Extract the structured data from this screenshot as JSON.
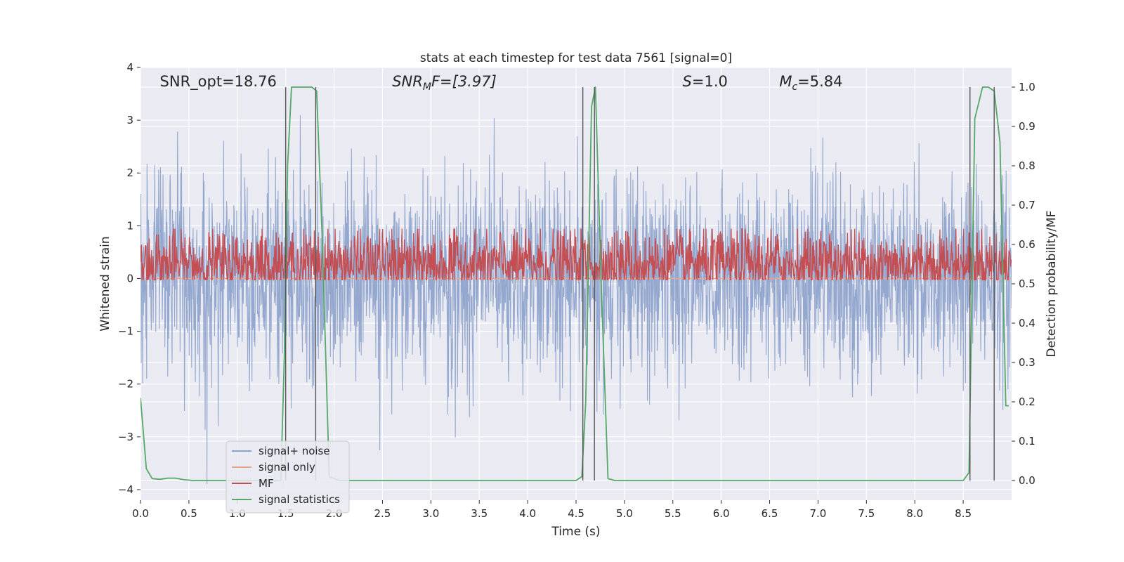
{
  "chart_data": {
    "type": "line",
    "title": "stats at each timestep for test data 7561 [signal=0]",
    "xlabel": "Time (s)",
    "ylabel": "Whitened strain",
    "y2label": "Detection probability/MF",
    "xlim": [
      0,
      9.0
    ],
    "ylim": [
      -4.2,
      4.0
    ],
    "y2lim": [
      -0.05,
      1.05
    ],
    "xticks": [
      0.0,
      0.5,
      1.0,
      1.5,
      2.0,
      2.5,
      3.0,
      3.5,
      4.0,
      4.5,
      5.0,
      5.5,
      6.0,
      6.5,
      7.0,
      7.5,
      8.0,
      8.5
    ],
    "xtick_labels": [
      "0.0",
      "0.5",
      "1.0",
      "1.5",
      "2.0",
      "2.5",
      "3.0",
      "3.5",
      "4.0",
      "4.5",
      "5.0",
      "5.5",
      "6.0",
      "6.5",
      "7.0",
      "7.5",
      "8.0",
      "8.5"
    ],
    "yticks": [
      -4,
      -3,
      -2,
      -1,
      0,
      1,
      2,
      3,
      4
    ],
    "ytick_labels": [
      "−4",
      "−3",
      "−2",
      "−1",
      "0",
      "1",
      "2",
      "3",
      "4"
    ],
    "y2ticks": [
      0.0,
      0.1,
      0.2,
      0.3,
      0.4,
      0.5,
      0.6,
      0.7,
      0.8,
      0.9,
      1.0
    ],
    "y2tick_labels": [
      "0.0",
      "0.1",
      "0.2",
      "0.3",
      "0.4",
      "0.5",
      "0.6",
      "0.7",
      "0.8",
      "0.9",
      "1.0"
    ],
    "grid": true,
    "legend_position": "lower-left",
    "annotations": [
      {
        "name": "snr-opt",
        "x": 0.2,
        "text": "SNR_opt=18.76"
      },
      {
        "name": "snr-mf",
        "x": 2.6,
        "text": "SNR_MF=[3.97]",
        "main": "SNR",
        "sub": "M",
        "rest": "F=[3.97]"
      },
      {
        "name": "s-value",
        "x": 5.6,
        "text": "S=1.0",
        "main": "S",
        "rest": "=1.0"
      },
      {
        "name": "mc-value",
        "x": 6.6,
        "text": "M_c=5.84",
        "main": "M",
        "sub": "c",
        "rest": "=5.84"
      }
    ],
    "series": [
      {
        "name": "signal+ noise",
        "color": "#8fa4cc",
        "kind": "noise",
        "mean": 0.0,
        "std": 0.95,
        "spike_max": 3.1,
        "spike_min": -4.0
      },
      {
        "name": "signal only",
        "color": "#e8a58c",
        "kind": "flat",
        "value": 0.0
      },
      {
        "name": "MF",
        "color": "#c44e52",
        "kind": "noise-secondary",
        "mean": 0.55,
        "std": 0.045,
        "max": 0.64,
        "min": 0.51
      },
      {
        "name": "signal statistics",
        "color": "#55a868",
        "kind": "secondary",
        "x": [
          0.0,
          0.06,
          0.12,
          0.2,
          0.28,
          0.36,
          0.45,
          0.55,
          0.7,
          1.0,
          1.3,
          1.45,
          1.49,
          1.52,
          1.56,
          1.7,
          1.77,
          1.82,
          1.88,
          1.95,
          2.05,
          2.3,
          3.0,
          4.0,
          4.5,
          4.56,
          4.6,
          4.66,
          4.7,
          4.76,
          4.83,
          4.9,
          5.5,
          6.5,
          7.5,
          8.3,
          8.5,
          8.56,
          8.62,
          8.7,
          8.76,
          8.82,
          8.88,
          8.94,
          8.97
        ],
        "y": [
          0.21,
          0.03,
          0.005,
          0.003,
          0.006,
          0.006,
          0.002,
          0.0,
          0.0,
          0.0,
          0.0,
          0.0,
          0.35,
          0.8,
          1.0,
          1.0,
          1.0,
          0.99,
          0.6,
          0.01,
          0.0,
          0.0,
          0.0,
          0.0,
          0.0,
          0.01,
          0.2,
          0.95,
          1.0,
          0.5,
          0.005,
          0.0,
          0.0,
          0.0,
          0.0,
          0.0,
          0.0,
          0.02,
          0.92,
          1.0,
          1.0,
          0.99,
          0.86,
          0.19,
          0.19
        ]
      }
    ],
    "vlines": [
      1.5,
      1.81,
      4.57,
      4.69,
      8.57,
      8.82
    ],
    "vline_color": "#555555",
    "vline_ymax": 1.0
  }
}
